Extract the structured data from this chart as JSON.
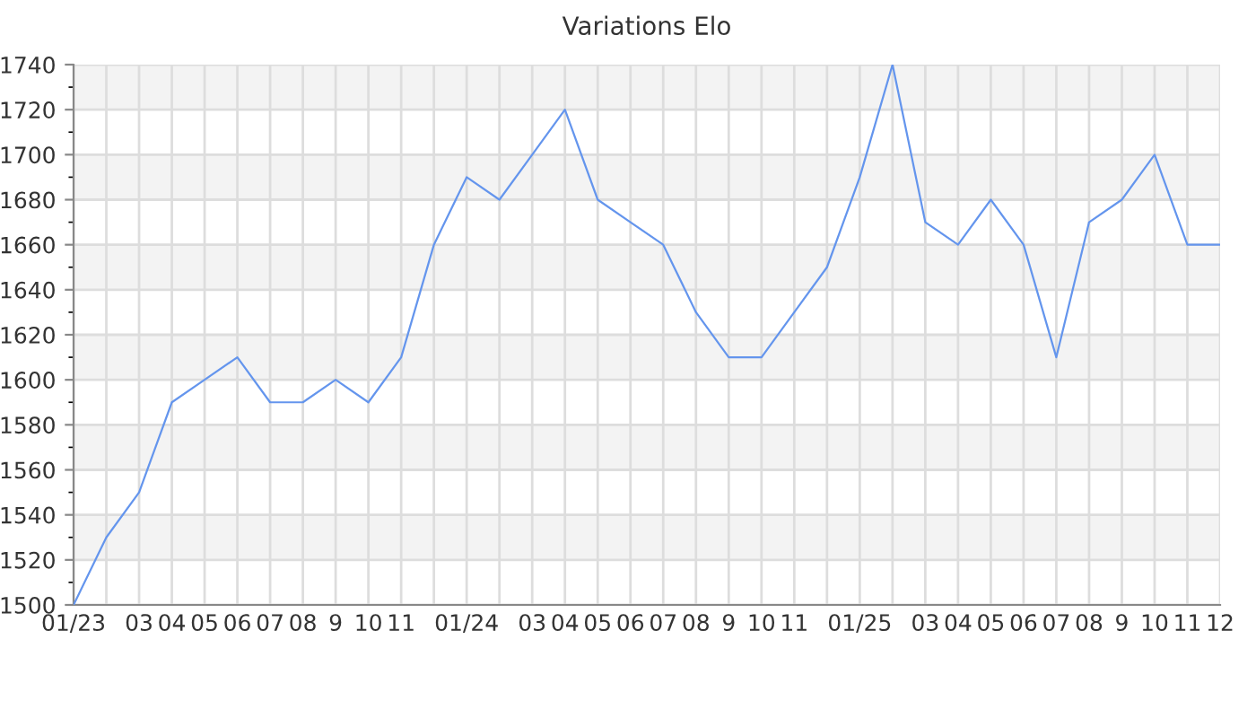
{
  "chart_data": {
    "type": "line",
    "title": "Variations Elo",
    "categories": [
      "01/23",
      null,
      "03",
      "04",
      "05",
      "06",
      "07",
      "08",
      "9",
      "10",
      "11",
      null,
      "01/24",
      null,
      "03",
      "04",
      "05",
      "06",
      "07",
      "08",
      "9",
      "10",
      "11",
      null,
      "01/25",
      null,
      "03",
      "04",
      "05",
      "06",
      "07",
      "08",
      "9",
      "10",
      "11",
      "12"
    ],
    "series": [
      {
        "color": "#6495ed",
        "values": [
          1500,
          1530,
          1550,
          1590,
          1600,
          1610,
          1590,
          1590,
          1600,
          1590,
          1610,
          1660,
          1690,
          1680,
          1700,
          1720,
          1680,
          1670,
          1660,
          1630,
          1610,
          1610,
          1630,
          1650,
          1690,
          1740,
          1670,
          1660,
          1680,
          1660,
          1610,
          1670,
          1680,
          1700,
          1660,
          1660
        ]
      }
    ],
    "ylim": [
      1500,
      1740
    ],
    "yticks": [
      1500,
      1520,
      1540,
      1560,
      1580,
      1600,
      1620,
      1640,
      1660,
      1680,
      1700,
      1720,
      1740
    ],
    "grid": true,
    "marker": "none",
    "line_style": "solid"
  }
}
